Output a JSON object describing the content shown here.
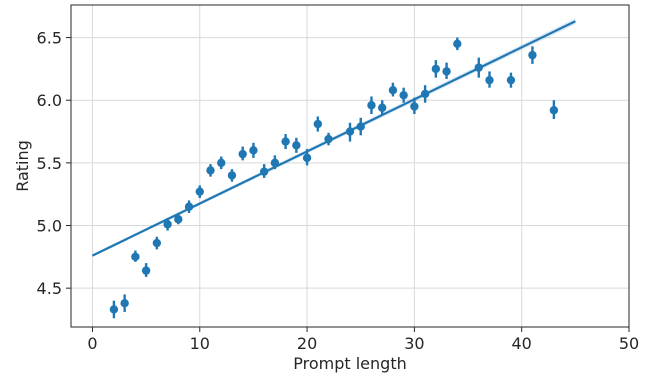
{
  "chart_data": {
    "type": "scatter",
    "xlabel": "Prompt length",
    "ylabel": "Rating",
    "xlim": [
      -2,
      50
    ],
    "ylim": [
      4.19,
      6.76
    ],
    "x_ticks": [
      0,
      10,
      20,
      30,
      40,
      50
    ],
    "y_ticks": [
      4.5,
      5.0,
      5.5,
      6.0,
      6.5
    ],
    "x_tick_labels": [
      "0",
      "10",
      "20",
      "30",
      "40",
      "50"
    ],
    "y_tick_labels": [
      "4.5",
      "5.0",
      "5.5",
      "6.0",
      "6.5"
    ],
    "grid": true,
    "point_color": "#1f77b4",
    "series": [
      {
        "points": [
          {
            "x": 2,
            "y": 4.33,
            "lo": 4.26,
            "hi": 4.4
          },
          {
            "x": 3,
            "y": 4.38,
            "lo": 4.31,
            "hi": 4.45
          },
          {
            "x": 4,
            "y": 4.75,
            "lo": 4.71,
            "hi": 4.8
          },
          {
            "x": 5,
            "y": 4.64,
            "lo": 4.59,
            "hi": 4.7
          },
          {
            "x": 6,
            "y": 4.86,
            "lo": 4.81,
            "hi": 4.91
          },
          {
            "x": 7,
            "y": 5.01,
            "lo": 4.96,
            "hi": 5.06
          },
          {
            "x": 8,
            "y": 5.05,
            "lo": 5.01,
            "hi": 5.1
          },
          {
            "x": 9,
            "y": 5.15,
            "lo": 5.1,
            "hi": 5.2
          },
          {
            "x": 10,
            "y": 5.27,
            "lo": 5.22,
            "hi": 5.32
          },
          {
            "x": 11,
            "y": 5.44,
            "lo": 5.39,
            "hi": 5.49
          },
          {
            "x": 12,
            "y": 5.5,
            "lo": 5.45,
            "hi": 5.55
          },
          {
            "x": 13,
            "y": 5.4,
            "lo": 5.35,
            "hi": 5.45
          },
          {
            "x": 14,
            "y": 5.57,
            "lo": 5.52,
            "hi": 5.63
          },
          {
            "x": 15,
            "y": 5.6,
            "lo": 5.54,
            "hi": 5.66
          },
          {
            "x": 16,
            "y": 5.43,
            "lo": 5.38,
            "hi": 5.49
          },
          {
            "x": 17,
            "y": 5.5,
            "lo": 5.45,
            "hi": 5.56
          },
          {
            "x": 18,
            "y": 5.67,
            "lo": 5.61,
            "hi": 5.73
          },
          {
            "x": 19,
            "y": 5.64,
            "lo": 5.58,
            "hi": 5.7
          },
          {
            "x": 20,
            "y": 5.54,
            "lo": 5.48,
            "hi": 5.61
          },
          {
            "x": 21,
            "y": 5.81,
            "lo": 5.75,
            "hi": 5.87
          },
          {
            "x": 22,
            "y": 5.69,
            "lo": 5.64,
            "hi": 5.74
          },
          {
            "x": 24,
            "y": 5.75,
            "lo": 5.67,
            "hi": 5.82
          },
          {
            "x": 25,
            "y": 5.79,
            "lo": 5.72,
            "hi": 5.86
          },
          {
            "x": 26,
            "y": 5.96,
            "lo": 5.89,
            "hi": 6.03
          },
          {
            "x": 27,
            "y": 5.94,
            "lo": 5.88,
            "hi": 6.0
          },
          {
            "x": 28,
            "y": 6.08,
            "lo": 6.03,
            "hi": 6.14
          },
          {
            "x": 29,
            "y": 6.04,
            "lo": 5.98,
            "hi": 6.1
          },
          {
            "x": 30,
            "y": 5.95,
            "lo": 5.89,
            "hi": 6.02
          },
          {
            "x": 31,
            "y": 6.05,
            "lo": 5.98,
            "hi": 6.12
          },
          {
            "x": 32,
            "y": 6.25,
            "lo": 6.18,
            "hi": 6.32
          },
          {
            "x": 33,
            "y": 6.23,
            "lo": 6.17,
            "hi": 6.3
          },
          {
            "x": 34,
            "y": 6.45,
            "lo": 6.4,
            "hi": 6.5
          },
          {
            "x": 36,
            "y": 6.26,
            "lo": 6.18,
            "hi": 6.34
          },
          {
            "x": 37,
            "y": 6.16,
            "lo": 6.1,
            "hi": 6.23
          },
          {
            "x": 39,
            "y": 6.16,
            "lo": 6.1,
            "hi": 6.22
          },
          {
            "x": 41,
            "y": 6.36,
            "lo": 6.29,
            "hi": 6.43
          },
          {
            "x": 43,
            "y": 5.92,
            "lo": 5.85,
            "hi": 6.0
          }
        ],
        "fit": {
          "x0": 0,
          "y0": 4.76,
          "x1": 45,
          "y1": 6.63
        }
      }
    ]
  }
}
